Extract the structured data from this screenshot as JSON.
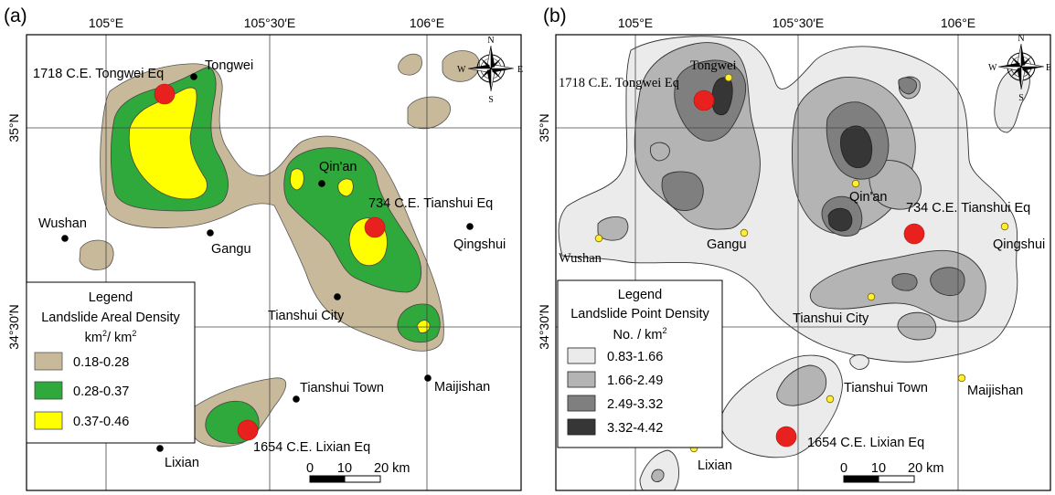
{
  "colors": {
    "areal": [
      "#c8b99a",
      "#2fa83c",
      "#ffff00"
    ],
    "point": [
      "#ebebeb",
      "#b4b4b4",
      "#7f7f7f",
      "#363636"
    ],
    "earthquake": "#e8201e",
    "city_a": "#000000",
    "city_b": "#ffee33"
  },
  "panel_a": {
    "tag": "(a)",
    "lon_labels": [
      "105°E",
      "105°30′E",
      "106°E"
    ],
    "lat_labels": [
      "35°N",
      "34°30′N"
    ],
    "cities": [
      "Tongwei",
      "Qin'an",
      "Gangu",
      "Wushan",
      "Qingshui",
      "Tianshui City",
      "Tianshui Town",
      "Maijishan",
      "Lixian"
    ],
    "earthquakes": [
      "1718 C.E. Tongwei Eq",
      "734 C.E. Tianshui Eq",
      "1654 C.E. Lixian Eq"
    ],
    "legend": {
      "heading": "Legend",
      "title": "Landslide Areal Density",
      "unit_main": "km",
      "unit_sup1": "2",
      "unit_mid": "/ km",
      "unit_sup2": "2",
      "classes": [
        "0.18-0.28",
        "0.28-0.37",
        "0.37-0.46"
      ]
    },
    "scale": {
      "ticks": [
        "0",
        "10",
        "20 km"
      ]
    },
    "compass": {
      "n": "N",
      "s": "S",
      "e": "E",
      "w": "W"
    }
  },
  "panel_b": {
    "tag": "(b)",
    "lon_labels": [
      "105°E",
      "105°30′E",
      "106°E"
    ],
    "lat_labels": [
      "35°N",
      "34°30′N"
    ],
    "cities": [
      "Tongwei",
      "Qin'an",
      "Gangu",
      "Wushan",
      "Qingshui",
      "Tianshui City",
      "Tianshui Town",
      "Maijishan",
      "Lixian"
    ],
    "earthquakes": [
      "1718 C.E. Tongwei Eq",
      "734 C.E. Tianshui Eq",
      "1654 C.E. Lixian Eq"
    ],
    "legend": {
      "heading": "Legend",
      "title": "Landslide Point Density",
      "unit_main": "No. / km",
      "unit_sup": "2",
      "classes": [
        "0.83-1.66",
        "1.66-2.49",
        "2.49-3.32",
        "3.32-4.42"
      ]
    },
    "scale": {
      "ticks": [
        "0",
        "10",
        "20 km"
      ]
    },
    "compass": {
      "n": "N",
      "s": "S",
      "e": "E",
      "w": "W"
    }
  }
}
